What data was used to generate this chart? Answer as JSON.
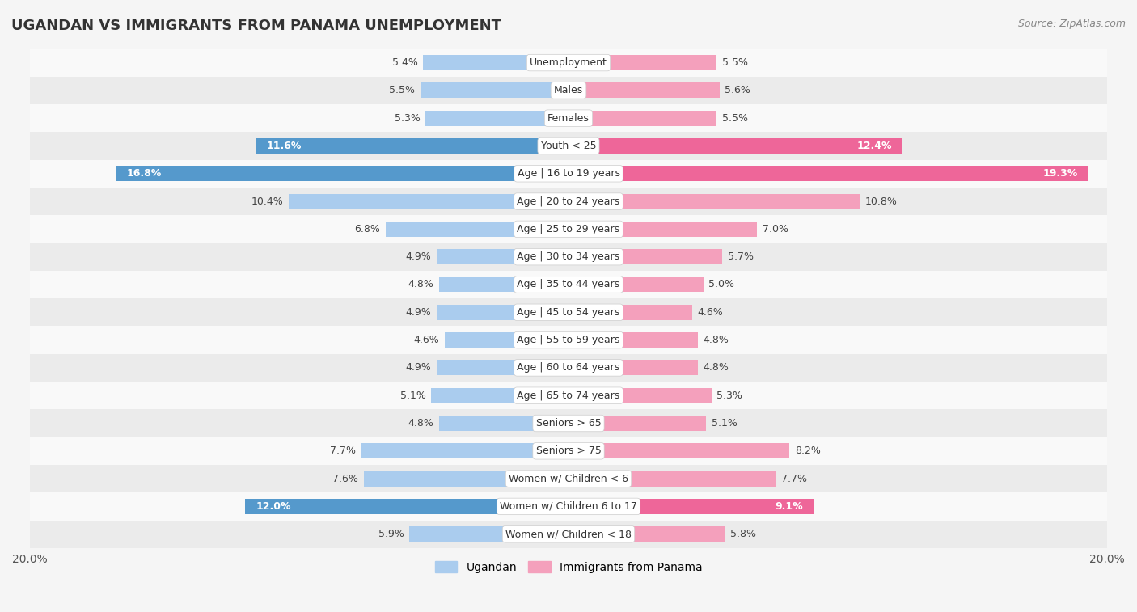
{
  "title": "UGANDAN VS IMMIGRANTS FROM PANAMA UNEMPLOYMENT",
  "source": "Source: ZipAtlas.com",
  "categories": [
    "Unemployment",
    "Males",
    "Females",
    "Youth < 25",
    "Age | 16 to 19 years",
    "Age | 20 to 24 years",
    "Age | 25 to 29 years",
    "Age | 30 to 34 years",
    "Age | 35 to 44 years",
    "Age | 45 to 54 years",
    "Age | 55 to 59 years",
    "Age | 60 to 64 years",
    "Age | 65 to 74 years",
    "Seniors > 65",
    "Seniors > 75",
    "Women w/ Children < 6",
    "Women w/ Children 6 to 17",
    "Women w/ Children < 18"
  ],
  "ugandan": [
    5.4,
    5.5,
    5.3,
    11.6,
    16.8,
    10.4,
    6.8,
    4.9,
    4.8,
    4.9,
    4.6,
    4.9,
    5.1,
    4.8,
    7.7,
    7.6,
    12.0,
    5.9
  ],
  "panama": [
    5.5,
    5.6,
    5.5,
    12.4,
    19.3,
    10.8,
    7.0,
    5.7,
    5.0,
    4.6,
    4.8,
    4.8,
    5.3,
    5.1,
    8.2,
    7.7,
    9.1,
    5.8
  ],
  "ugandan_color": "#aaccee",
  "panama_color": "#f4a0bc",
  "ugandan_highlight_color": "#5599cc",
  "panama_highlight_color": "#ee6699",
  "highlight_rows": [
    3,
    4,
    16
  ],
  "axis_max": 20.0,
  "background_color": "#f5f5f5",
  "row_bg_light": "#f9f9f9",
  "row_bg_dark": "#ebebeb",
  "legend_ugandan": "Ugandan",
  "legend_panama": "Immigrants from Panama"
}
